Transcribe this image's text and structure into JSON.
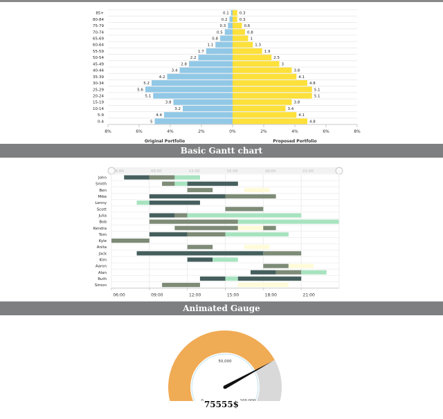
{
  "colors": {
    "band": "#7e7f80",
    "left_bar": "#91c8e6",
    "right_bar": "#fde03a",
    "gantt_dark": "#455f5d",
    "gantt_olive": "#7d8b77",
    "gantt_mint": "#a8e3c0",
    "gantt_pale": "#fffbd9",
    "gauge_orange": "#f0ab55",
    "gauge_grey": "#d9d9d9",
    "gauge_needle": "#111111"
  },
  "sections": {
    "gantt_title": "Basic Gantt chart",
    "gauge_title": "Animated Gauge"
  },
  "chart_data": [
    {
      "type": "bar",
      "subtype": "population-pyramid",
      "categories": [
        "0-4",
        "5-9",
        "10-14",
        "15-19",
        "20-24",
        "25-29",
        "30-34",
        "35-39",
        "40-44",
        "45-49",
        "50-54",
        "55-59",
        "60-64",
        "65-69",
        "70-74",
        "75-79",
        "80-84",
        "85+"
      ],
      "series": [
        {
          "name": "Original Portfolio",
          "values": [
            5,
            4.4,
            3.2,
            3.8,
            5.1,
            5.6,
            5.2,
            4.2,
            3.4,
            2.8,
            2.2,
            1.7,
            1.1,
            0.8,
            0.5,
            0.3,
            0.2,
            0.1
          ]
        },
        {
          "name": "Proposed Portfolio",
          "values": [
            4.8,
            4.1,
            3.4,
            3.8,
            5.1,
            5.1,
            4.8,
            4.1,
            3.8,
            3,
            2.5,
            1.9,
            1.3,
            1,
            0.8,
            0.6,
            0.3,
            0.3
          ]
        }
      ],
      "xlim": [
        -8,
        8
      ],
      "xticks": [
        "8%",
        "6%",
        "4%",
        "2%",
        "0%",
        "2%",
        "4%",
        "6%",
        "8%"
      ]
    },
    {
      "type": "gantt",
      "title": "Basic Gantt chart",
      "xlim": [
        6,
        24
      ],
      "axis_ticks": [
        {
          "value": 6,
          "label": "06:00"
        },
        {
          "value": 9,
          "label": "09:00"
        },
        {
          "value": 12,
          "label": "12:00"
        },
        {
          "value": 15,
          "label": "15:00"
        },
        {
          "value": 18,
          "label": "18:00"
        },
        {
          "value": 21,
          "label": "21:00"
        }
      ],
      "navigator_ticks": [
        {
          "value": 6,
          "label": "06:00"
        },
        {
          "value": 9,
          "label": "09:00"
        },
        {
          "value": 12,
          "label": "12:00"
        },
        {
          "value": 15,
          "label": "15:00"
        },
        {
          "value": 18,
          "label": "18:00"
        },
        {
          "value": 21,
          "label": "21:00"
        }
      ],
      "rows": [
        {
          "name": "John",
          "tasks": [
            [
              7,
              9,
              "dark"
            ],
            [
              9,
              11,
              "olive"
            ],
            [
              11,
              13,
              "mint"
            ]
          ]
        },
        {
          "name": "Smith",
          "tasks": [
            [
              10,
              11,
              "olive"
            ],
            [
              11,
              12,
              "mint"
            ],
            [
              12,
              16,
              "dark"
            ]
          ]
        },
        {
          "name": "Ben",
          "tasks": [
            [
              12,
              14,
              "olive"
            ],
            [
              16.5,
              18.5,
              "pale"
            ]
          ]
        },
        {
          "name": "Mike",
          "tasks": [
            [
              9,
              15,
              "dark"
            ],
            [
              15,
              19,
              "olive"
            ]
          ]
        },
        {
          "name": "Lenny",
          "tasks": [
            [
              8,
              9,
              "mint"
            ],
            [
              9,
              13,
              "dark"
            ]
          ]
        },
        {
          "name": "Scott",
          "tasks": [
            [
              15,
              18,
              "olive"
            ]
          ]
        },
        {
          "name": "Julia",
          "tasks": [
            [
              9,
              11,
              "dark"
            ],
            [
              11,
              12,
              "olive"
            ],
            [
              12,
              21,
              "mint"
            ]
          ]
        },
        {
          "name": "Bob",
          "tasks": [
            [
              9,
              16,
              "olive"
            ],
            [
              16,
              24,
              "mint"
            ]
          ]
        },
        {
          "name": "Kendra",
          "tasks": [
            [
              11,
              16,
              "olive"
            ],
            [
              16,
              18,
              "pale"
            ],
            [
              18,
              19,
              "olive"
            ]
          ]
        },
        {
          "name": "Tom",
          "tasks": [
            [
              9,
              12,
              "dark"
            ],
            [
              12,
              15,
              "olive"
            ],
            [
              15,
              20,
              "mint"
            ]
          ]
        },
        {
          "name": "Kyle",
          "tasks": [
            [
              6,
              9,
              "olive"
            ]
          ]
        },
        {
          "name": "Anita",
          "tasks": [
            [
              12,
              14,
              "olive"
            ],
            [
              16.5,
              18.5,
              "pale"
            ]
          ]
        },
        {
          "name": "Jack",
          "tasks": [
            [
              8,
              18,
              "dark"
            ],
            [
              18,
              21,
              "olive"
            ]
          ]
        },
        {
          "name": "Kim",
          "tasks": [
            [
              12,
              14,
              "dark"
            ],
            [
              14,
              16,
              "mint"
            ]
          ]
        },
        {
          "name": "Aaron",
          "tasks": [
            [
              18,
              20,
              "olive"
            ],
            [
              20,
              22,
              "pale"
            ]
          ]
        },
        {
          "name": "Alan",
          "tasks": [
            [
              17,
              19,
              "dark"
            ],
            [
              19,
              21,
              "olive"
            ],
            [
              21,
              23,
              "mint"
            ]
          ]
        },
        {
          "name": "Ruth",
          "tasks": [
            [
              13,
              15,
              "dark"
            ],
            [
              15,
              16,
              "mint"
            ],
            [
              16,
              21,
              "dark"
            ]
          ]
        },
        {
          "name": "Simon",
          "tasks": [
            [
              10,
              13,
              "olive"
            ],
            [
              16,
              20,
              "pale"
            ]
          ]
        }
      ]
    },
    {
      "type": "gauge",
      "title": "Animated Gauge",
      "min": 0,
      "max": 100000,
      "value": 75555,
      "value_label": "75555$",
      "tick_labels": [
        {
          "value": 0,
          "label": "0"
        },
        {
          "value": 50000,
          "label": "50,000"
        },
        {
          "value": 100000,
          "label": "100,000"
        }
      ]
    }
  ]
}
